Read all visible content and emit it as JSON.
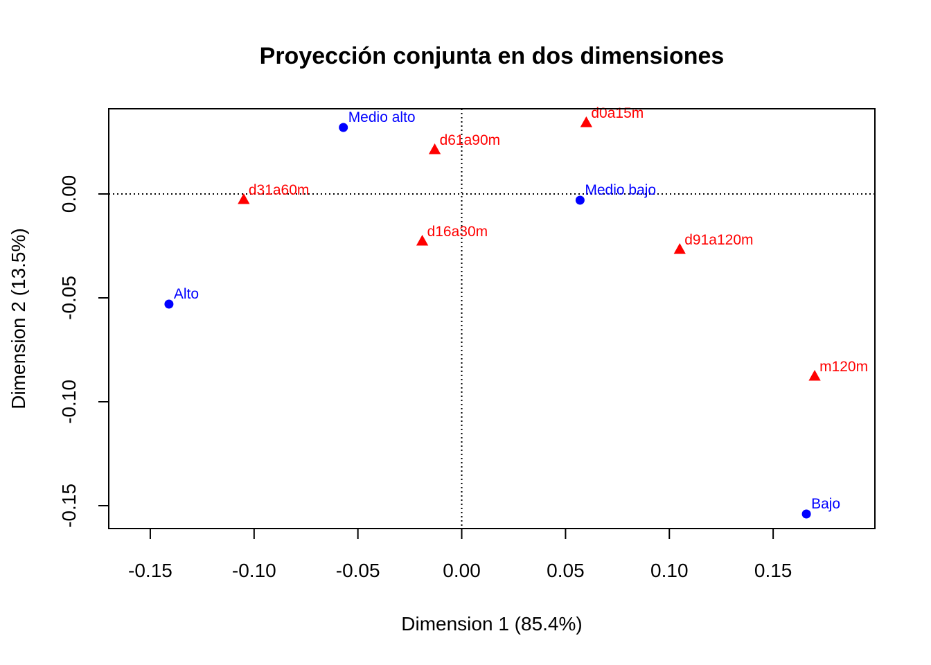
{
  "chart_data": {
    "type": "scatter",
    "title": "Proyección conjunta en dos dimensiones",
    "xlabel": "Dimension 1 (85.4%)",
    "ylabel": "Dimension 2 (13.5%)",
    "xlim": [
      -0.17,
      0.199
    ],
    "ylim": [
      -0.161,
      0.041
    ],
    "xticks": [
      -0.15,
      -0.1,
      -0.05,
      0.0,
      0.05,
      0.1,
      0.15
    ],
    "xtick_labels": [
      "-0.15",
      "-0.10",
      "-0.05",
      "0.00",
      "0.05",
      "0.10",
      "0.15"
    ],
    "yticks": [
      -0.15,
      -0.1,
      -0.05,
      0.0
    ],
    "ytick_labels": [
      "-0.15",
      "-0.10",
      "-0.05",
      "0.00"
    ],
    "reference_lines": {
      "x": 0,
      "y": 0,
      "style": "dotted"
    },
    "grid": false,
    "series": [
      {
        "marker": "circle",
        "color": "#0000FF",
        "points": [
          {
            "label": "Medio alto",
            "x": -0.057,
            "y": 0.032
          },
          {
            "label": "Medio bajo",
            "x": 0.057,
            "y": -0.003
          },
          {
            "label": "Alto",
            "x": -0.141,
            "y": -0.053
          },
          {
            "label": "Bajo",
            "x": 0.166,
            "y": -0.154
          }
        ]
      },
      {
        "marker": "triangle",
        "color": "#FF0000",
        "points": [
          {
            "label": "d0a15m",
            "x": 0.06,
            "y": 0.034
          },
          {
            "label": "d61a90m",
            "x": -0.013,
            "y": 0.021
          },
          {
            "label": "d31a60m",
            "x": -0.105,
            "y": -0.003
          },
          {
            "label": "d16a30m",
            "x": -0.019,
            "y": -0.023
          },
          {
            "label": "d91a120m",
            "x": 0.105,
            "y": -0.027
          },
          {
            "label": "m120m",
            "x": 0.17,
            "y": -0.088
          }
        ]
      }
    ]
  }
}
